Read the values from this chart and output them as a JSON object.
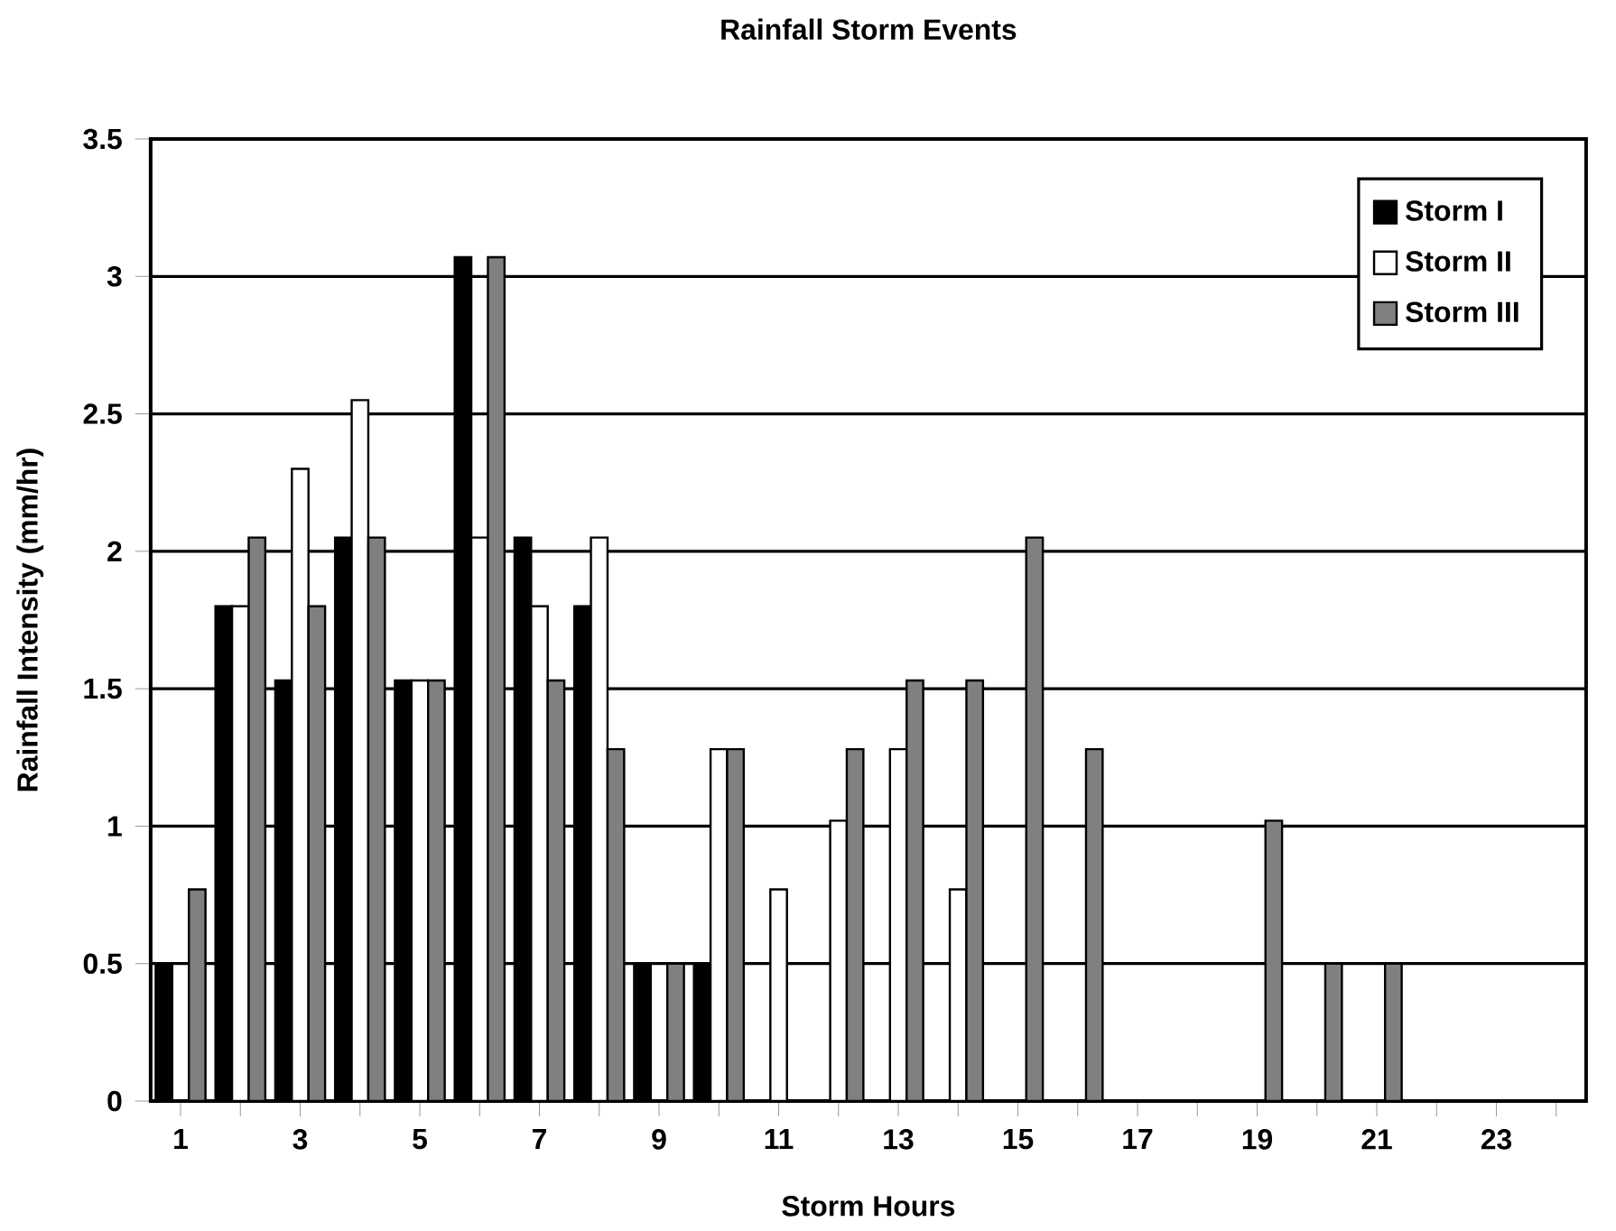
{
  "chart_data": {
    "type": "bar",
    "title": "Rainfall Storm Events",
    "xlabel": "Storm Hours",
    "ylabel": "Rainfall Intensity (mm/hr)",
    "categories": [
      "1",
      null,
      "3",
      null,
      "5",
      null,
      "7",
      null,
      "9",
      null,
      "11",
      null,
      "13",
      null,
      "15",
      null,
      "17",
      null,
      "19",
      null,
      "21",
      null,
      "23",
      null
    ],
    "series": [
      {
        "name": "Storm I",
        "color": "#000000",
        "values": [
          0.5,
          1.8,
          1.53,
          2.05,
          1.53,
          3.07,
          2.05,
          1.8,
          0.5,
          0.5,
          null,
          null,
          null,
          null,
          null,
          null,
          null,
          null,
          null,
          null,
          null,
          null,
          null,
          null
        ]
      },
      {
        "name": "Storm II",
        "color": "#ffffff",
        "values": [
          null,
          1.8,
          2.3,
          2.55,
          1.53,
          2.05,
          1.8,
          2.05,
          null,
          1.28,
          0.77,
          1.02,
          1.28,
          0.77,
          null,
          null,
          null,
          null,
          null,
          null,
          null,
          null,
          null,
          null
        ]
      },
      {
        "name": "Storm III",
        "color": "#808080",
        "values": [
          0.77,
          2.05,
          1.8,
          2.05,
          1.53,
          3.07,
          1.53,
          1.28,
          0.5,
          1.28,
          null,
          1.28,
          1.53,
          1.53,
          2.05,
          1.28,
          null,
          null,
          1.02,
          0.5,
          0.5,
          null,
          null,
          null
        ]
      }
    ],
    "ylim": [
      0,
      3.5
    ],
    "yticks": [
      0,
      0.5,
      1,
      1.5,
      2,
      2.5,
      3,
      3.5
    ],
    "grid": "y",
    "legend": "top right"
  }
}
